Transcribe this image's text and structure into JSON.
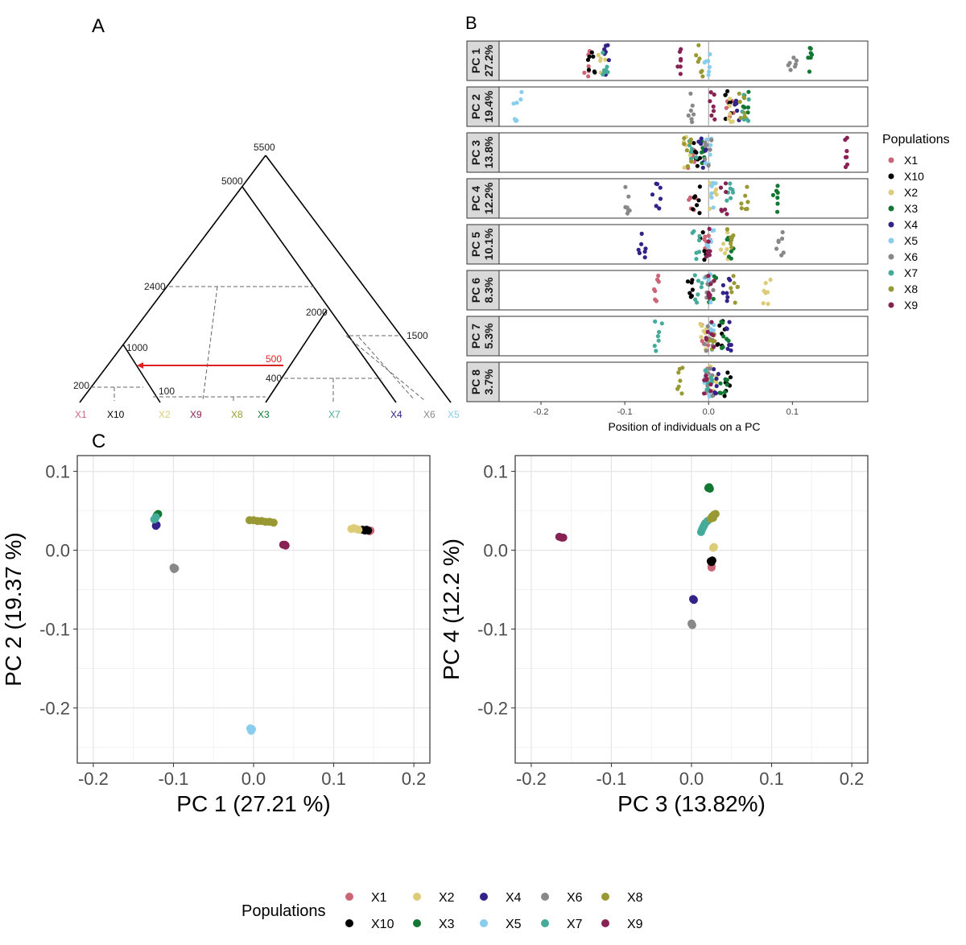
{
  "panels": {
    "a": "A",
    "b": "B",
    "c": "C"
  },
  "colors": {
    "X1": "#cc6677",
    "X10": "#000000",
    "X2": "#ddcc77",
    "X3": "#117733",
    "X4": "#332288",
    "X5": "#88ccee",
    "X6": "#888888",
    "X7": "#44aa99",
    "X8": "#999933",
    "X9": "#882255"
  },
  "tree": {
    "leaves": [
      "X1",
      "X10",
      "X2",
      "X9",
      "X8",
      "X3",
      "X7",
      "X4",
      "X6",
      "X5"
    ],
    "node_labels": [
      "5500",
      "5000",
      "2400",
      "2000",
      "1500",
      "1000",
      "500",
      "400",
      "200",
      "100"
    ],
    "migration_arrow_label": "500"
  },
  "chart_data": [
    {
      "type": "scatter",
      "panel": "B",
      "xlabel": "Position of individuals on a PC",
      "xlim": [
        -0.25,
        0.19
      ],
      "xticks": [
        "-0.2",
        "-0.1",
        "0.0",
        "0.1"
      ],
      "xtick_values": [
        -0.2,
        -0.1,
        0.0,
        0.1
      ],
      "legend_title": "Populations",
      "legend_entries": [
        "X1",
        "X10",
        "X2",
        "X3",
        "X4",
        "X5",
        "X6",
        "X7",
        "X8",
        "X9"
      ],
      "legend_position": "right",
      "strip_labels": [
        {
          "pc": "PC 1",
          "pct": "27.2%"
        },
        {
          "pc": "PC 2",
          "pct": "19.4%"
        },
        {
          "pc": "PC 3",
          "pct": "13.8%"
        },
        {
          "pc": "PC 4",
          "pct": "12.2%"
        },
        {
          "pc": "PC 5",
          "pct": "10.1%"
        },
        {
          "pc": "PC 6",
          "pct": "8.3%"
        },
        {
          "pc": "PC 7",
          "pct": "5.3%"
        },
        {
          "pc": "PC 8",
          "pct": "3.7%"
        }
      ],
      "series": [
        {
          "name": "X1",
          "centers": [
            -0.145,
            0.025,
            -0.02,
            -0.02,
            -0.002,
            -0.06,
            -0.005,
            -0.001
          ]
        },
        {
          "name": "X10",
          "centers": [
            -0.14,
            0.024,
            -0.015,
            -0.015,
            -0.005,
            -0.02,
            0.015,
            0.022
          ]
        },
        {
          "name": "X2",
          "centers": [
            -0.128,
            0.028,
            -0.025,
            0.005,
            0.018,
            0.07,
            -0.005,
            0.005
          ]
        },
        {
          "name": "X3",
          "centers": [
            0.12,
            0.045,
            -0.01,
            0.08,
            0.025,
            0.005,
            0.02,
            0.018
          ]
        },
        {
          "name": "X4",
          "centers": [
            -0.122,
            0.032,
            -0.008,
            -0.062,
            -0.08,
            0.022,
            0.022,
            0.01
          ]
        },
        {
          "name": "X5",
          "centers": [
            0.0,
            -0.228,
            0.001,
            0.005,
            0.002,
            0.0,
            0.002,
            0.0
          ]
        },
        {
          "name": "X6",
          "centers": [
            0.1,
            -0.022,
            0.0,
            -0.095,
            0.085,
            0.002,
            0.0,
            0.0
          ]
        },
        {
          "name": "X7",
          "centers": [
            -0.122,
            0.045,
            -0.018,
            0.025,
            -0.015,
            -0.012,
            -0.06,
            0.0
          ]
        },
        {
          "name": "X8",
          "centers": [
            -0.01,
            0.04,
            -0.025,
            0.043,
            0.025,
            0.03,
            0.005,
            -0.035
          ]
        },
        {
          "name": "X9",
          "centers": [
            -0.035,
            0.006,
            0.165,
            0.018,
            -0.003,
            0.003,
            0.002,
            -0.002
          ]
        }
      ]
    },
    {
      "type": "scatter",
      "panel": "C-left",
      "xlabel": "PC 1 (27.21 %)",
      "ylabel": "PC 2 (19.37 %)",
      "xlim": [
        -0.22,
        0.22
      ],
      "ylim": [
        -0.27,
        0.12
      ],
      "xticks": [
        "-0.2",
        "-0.1",
        "0.0",
        "0.1",
        "0.2"
      ],
      "xtick_values": [
        -0.2,
        -0.1,
        0.0,
        0.1,
        0.2
      ],
      "yticks": [
        "0.1",
        "0.0",
        "-0.1",
        "-0.2"
      ],
      "ytick_values": [
        0.1,
        0.0,
        -0.1,
        -0.2
      ],
      "grid": true,
      "series": [
        {
          "name": "X1",
          "points": [
            [
              0.145,
              0.024
            ],
            [
              0.146,
              0.025
            ]
          ]
        },
        {
          "name": "X10",
          "points": [
            [
              0.136,
              0.026
            ],
            [
              0.139,
              0.025
            ],
            [
              0.141,
              0.026
            ],
            [
              0.143,
              0.025
            ]
          ]
        },
        {
          "name": "X2",
          "points": [
            [
              0.122,
              0.027
            ],
            [
              0.125,
              0.028
            ],
            [
              0.128,
              0.027
            ],
            [
              0.131,
              0.026
            ]
          ]
        },
        {
          "name": "X3",
          "points": [
            [
              -0.12,
              0.045
            ],
            [
              -0.119,
              0.046
            ],
            [
              -0.121,
              0.044
            ]
          ]
        },
        {
          "name": "X4",
          "points": [
            [
              -0.122,
              0.031
            ],
            [
              -0.121,
              0.032
            ]
          ]
        },
        {
          "name": "X5",
          "points": [
            [
              -0.004,
              -0.226
            ],
            [
              -0.003,
              -0.229
            ],
            [
              -0.002,
              -0.227
            ]
          ]
        },
        {
          "name": "X6",
          "points": [
            [
              -0.1,
              -0.022
            ],
            [
              -0.099,
              -0.024
            ],
            [
              -0.098,
              -0.023
            ]
          ]
        },
        {
          "name": "X7",
          "points": [
            [
              -0.123,
              0.04
            ],
            [
              -0.122,
              0.042
            ],
            [
              -0.124,
              0.039
            ]
          ]
        },
        {
          "name": "X8",
          "points": [
            [
              -0.005,
              0.038
            ],
            [
              0.0,
              0.038
            ],
            [
              0.005,
              0.037
            ],
            [
              0.01,
              0.037
            ],
            [
              0.015,
              0.036
            ],
            [
              0.02,
              0.036
            ],
            [
              0.025,
              0.035
            ]
          ]
        },
        {
          "name": "X9",
          "points": [
            [
              0.037,
              0.007
            ],
            [
              0.04,
              0.006
            ],
            [
              0.039,
              0.007
            ]
          ]
        }
      ]
    },
    {
      "type": "scatter",
      "panel": "C-right",
      "xlabel": "PC 3 (13.82%)",
      "ylabel": "PC 4 (12.2 %)",
      "xlim": [
        -0.22,
        0.22
      ],
      "ylim": [
        -0.27,
        0.12
      ],
      "xticks": [
        "-0.2",
        "-0.1",
        "0.0",
        "0.1",
        "0.2"
      ],
      "xtick_values": [
        -0.2,
        -0.1,
        0.0,
        0.1,
        0.2
      ],
      "yticks": [
        "0.1",
        "0.0",
        "-0.1",
        "-0.2"
      ],
      "ytick_values": [
        0.1,
        0.0,
        -0.1,
        -0.2
      ],
      "grid": true,
      "series": [
        {
          "name": "X1",
          "points": [
            [
              0.025,
              -0.02
            ],
            [
              0.025,
              -0.022
            ]
          ]
        },
        {
          "name": "X10",
          "points": [
            [
              0.024,
              -0.014
            ],
            [
              0.025,
              -0.015
            ],
            [
              0.026,
              -0.013
            ]
          ]
        },
        {
          "name": "X2",
          "points": [
            [
              0.027,
              0.003
            ],
            [
              0.028,
              0.004
            ]
          ]
        },
        {
          "name": "X3",
          "points": [
            [
              0.021,
              0.079
            ],
            [
              0.022,
              0.08
            ],
            [
              0.023,
              0.078
            ]
          ]
        },
        {
          "name": "X4",
          "points": [
            [
              0.002,
              -0.062
            ],
            [
              0.003,
              -0.063
            ]
          ]
        },
        {
          "name": "X5",
          "points": []
        },
        {
          "name": "X6",
          "points": [
            [
              0.0,
              -0.093
            ],
            [
              0.001,
              -0.095
            ]
          ]
        },
        {
          "name": "X7",
          "points": [
            [
              0.012,
              0.023
            ],
            [
              0.013,
              0.026
            ],
            [
              0.014,
              0.028
            ],
            [
              0.015,
              0.03
            ],
            [
              0.016,
              0.032
            ],
            [
              0.017,
              0.034
            ],
            [
              0.02,
              0.037
            ]
          ]
        },
        {
          "name": "X8",
          "points": [
            [
              0.024,
              0.04
            ],
            [
              0.026,
              0.043
            ],
            [
              0.028,
              0.045
            ],
            [
              0.03,
              0.046
            ],
            [
              0.027,
              0.041
            ]
          ]
        },
        {
          "name": "X9",
          "points": [
            [
              -0.165,
              0.017
            ],
            [
              -0.162,
              0.016
            ],
            [
              -0.16,
              0.016
            ]
          ]
        }
      ]
    }
  ],
  "bottom_legend": {
    "title": "Populations",
    "row1": [
      "X1",
      "X2",
      "X4",
      "X6",
      "X8"
    ],
    "row2": [
      "X10",
      "X3",
      "X5",
      "X7",
      "X9"
    ]
  }
}
